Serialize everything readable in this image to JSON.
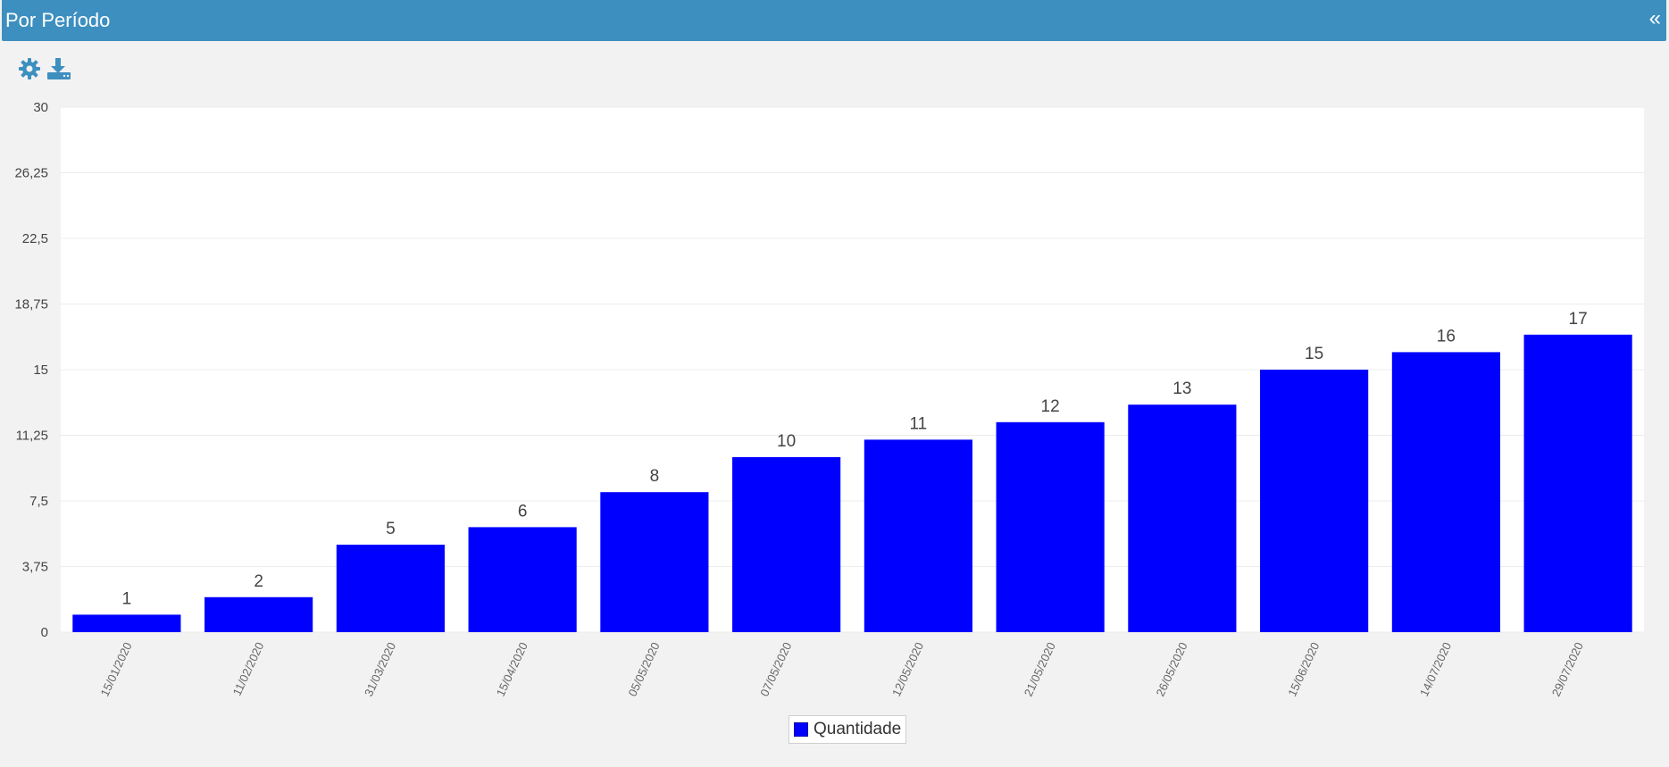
{
  "panel": {
    "title": "Por Período",
    "collapse_label": "«"
  },
  "toolbar": {
    "settings_icon": "gear-icon",
    "download_icon": "download-icon",
    "icon_color": "#3d8fc0"
  },
  "chart_data": {
    "type": "bar",
    "categories": [
      "15/01/2020",
      "11/02/2020",
      "31/03/2020",
      "15/04/2020",
      "05/05/2020",
      "07/05/2020",
      "12/05/2020",
      "21/05/2020",
      "26/05/2020",
      "15/06/2020",
      "14/07/2020",
      "29/07/2020"
    ],
    "series": [
      {
        "name": "Quantidade",
        "values": [
          1,
          2,
          5,
          6,
          8,
          10,
          11,
          12,
          13,
          15,
          16,
          17
        ],
        "color": "#0000ff"
      }
    ],
    "ylim": [
      0,
      30
    ],
    "yticks": [
      "0",
      "3,75",
      "7,5",
      "11,25",
      "15",
      "18,75",
      "22,5",
      "26,25",
      "30"
    ],
    "ytick_values": [
      0,
      3.75,
      7.5,
      11.25,
      15,
      18.75,
      22.5,
      26.25,
      30
    ],
    "grid": true,
    "legend_position": "bottom-center",
    "data_labels": true
  }
}
